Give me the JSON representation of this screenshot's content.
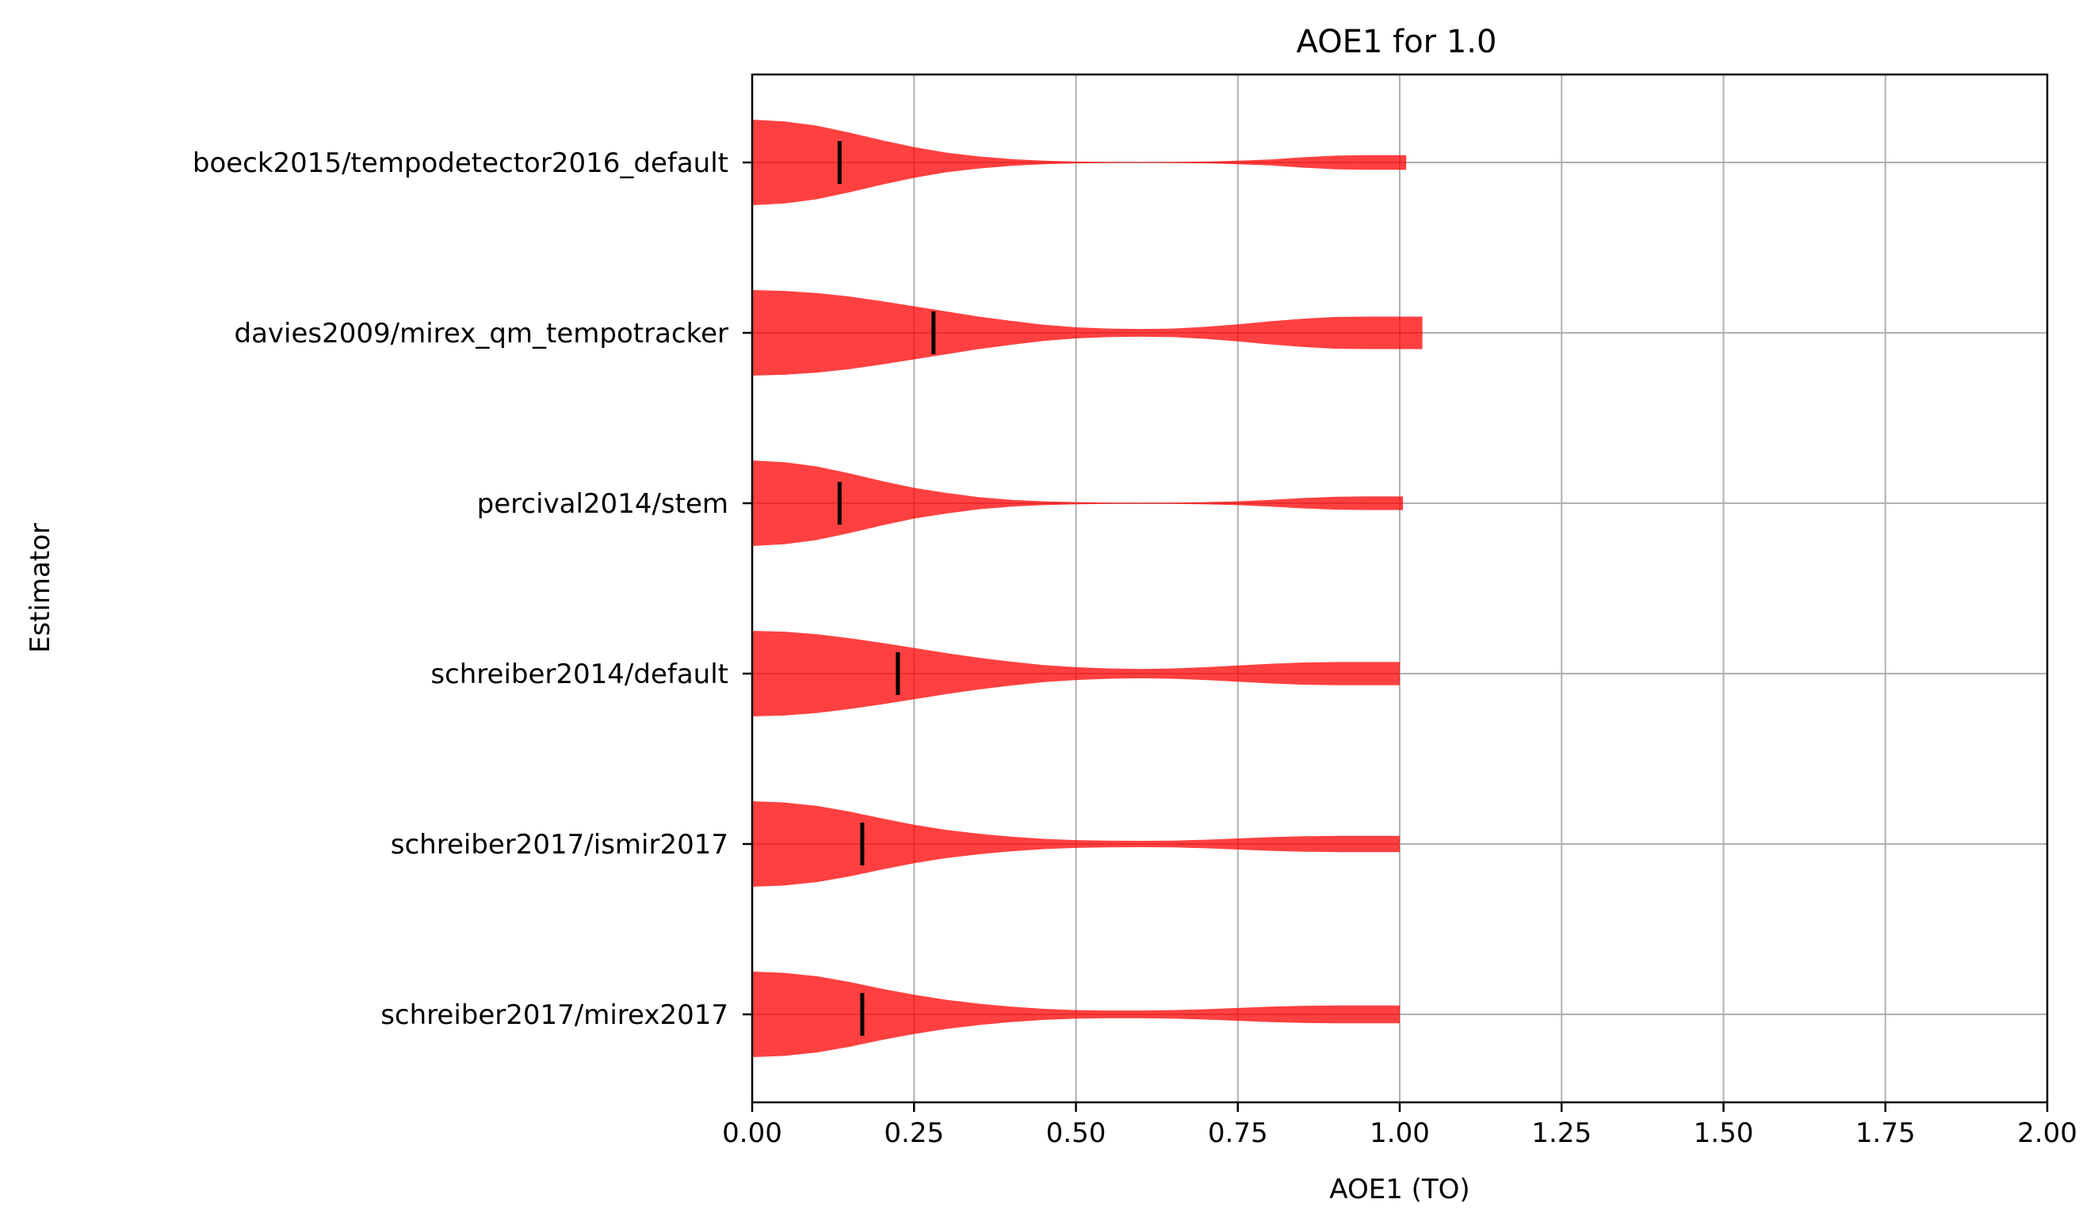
{
  "chart_data": {
    "type": "violin",
    "title": "AOE1 for 1.0",
    "xlabel": "AOE1 (TO)",
    "ylabel": "Estimator",
    "xlim": [
      0,
      2
    ],
    "xticks": [
      "0.00",
      "0.25",
      "0.50",
      "0.75",
      "1.00",
      "1.25",
      "1.50",
      "1.75",
      "2.00"
    ],
    "grid": true,
    "color": "#ff0000",
    "median_color": "#000000",
    "series": [
      {
        "name": "boeck2015/tempodetector2016_default",
        "median": 0.135,
        "max": 1.01,
        "profile_x": [
          0,
          0.05,
          0.1,
          0.15,
          0.2,
          0.25,
          0.3,
          0.35,
          0.4,
          0.45,
          0.5,
          0.55,
          0.6,
          0.65,
          0.7,
          0.75,
          0.8,
          0.85,
          0.9,
          0.95,
          1.0,
          1.01
        ],
        "profile_w": [
          1.0,
          0.96,
          0.86,
          0.7,
          0.52,
          0.36,
          0.23,
          0.14,
          0.08,
          0.04,
          0.02,
          0.012,
          0.01,
          0.012,
          0.02,
          0.04,
          0.07,
          0.12,
          0.16,
          0.17,
          0.17,
          0.17
        ]
      },
      {
        "name": "davies2009/mirex_qm_tempotracker",
        "median": 0.28,
        "max": 1.035,
        "profile_x": [
          0,
          0.05,
          0.1,
          0.15,
          0.2,
          0.25,
          0.3,
          0.35,
          0.4,
          0.45,
          0.5,
          0.55,
          0.6,
          0.65,
          0.7,
          0.75,
          0.8,
          0.85,
          0.9,
          0.95,
          1.0,
          1.035
        ],
        "profile_w": [
          1.0,
          0.98,
          0.93,
          0.85,
          0.74,
          0.62,
          0.5,
          0.38,
          0.28,
          0.19,
          0.13,
          0.1,
          0.09,
          0.1,
          0.14,
          0.2,
          0.27,
          0.33,
          0.37,
          0.38,
          0.38,
          0.38
        ]
      },
      {
        "name": "percival2014/stem",
        "median": 0.135,
        "max": 1.005,
        "profile_x": [
          0,
          0.05,
          0.1,
          0.15,
          0.2,
          0.25,
          0.3,
          0.35,
          0.4,
          0.45,
          0.5,
          0.55,
          0.6,
          0.65,
          0.7,
          0.75,
          0.8,
          0.85,
          0.9,
          0.95,
          1.0,
          1.005
        ],
        "profile_w": [
          1.0,
          0.96,
          0.86,
          0.7,
          0.52,
          0.36,
          0.24,
          0.14,
          0.08,
          0.045,
          0.025,
          0.015,
          0.012,
          0.014,
          0.025,
          0.045,
          0.08,
          0.12,
          0.15,
          0.16,
          0.16,
          0.16
        ]
      },
      {
        "name": "schreiber2014/default",
        "median": 0.225,
        "max": 1.0,
        "profile_x": [
          0,
          0.05,
          0.1,
          0.15,
          0.2,
          0.25,
          0.3,
          0.35,
          0.4,
          0.45,
          0.5,
          0.55,
          0.6,
          0.65,
          0.7,
          0.75,
          0.8,
          0.85,
          0.9,
          0.95,
          1.0
        ],
        "profile_w": [
          1.0,
          0.98,
          0.92,
          0.83,
          0.72,
          0.6,
          0.48,
          0.37,
          0.28,
          0.2,
          0.15,
          0.12,
          0.11,
          0.12,
          0.15,
          0.19,
          0.23,
          0.26,
          0.27,
          0.27,
          0.27
        ]
      },
      {
        "name": "schreiber2017/ismir2017",
        "median": 0.17,
        "max": 1.0,
        "profile_x": [
          0,
          0.05,
          0.1,
          0.15,
          0.2,
          0.25,
          0.3,
          0.35,
          0.4,
          0.45,
          0.5,
          0.55,
          0.6,
          0.65,
          0.7,
          0.75,
          0.8,
          0.85,
          0.9,
          0.95,
          1.0
        ],
        "profile_w": [
          1.0,
          0.97,
          0.89,
          0.76,
          0.6,
          0.45,
          0.33,
          0.24,
          0.17,
          0.12,
          0.09,
          0.08,
          0.075,
          0.08,
          0.1,
          0.13,
          0.16,
          0.18,
          0.19,
          0.19,
          0.19
        ]
      },
      {
        "name": "schreiber2017/mirex2017",
        "median": 0.17,
        "max": 1.0,
        "profile_x": [
          0,
          0.05,
          0.1,
          0.15,
          0.2,
          0.25,
          0.3,
          0.35,
          0.4,
          0.45,
          0.5,
          0.55,
          0.6,
          0.65,
          0.7,
          0.75,
          0.8,
          0.85,
          0.9,
          0.95,
          1.0
        ],
        "profile_w": [
          1.0,
          0.97,
          0.89,
          0.76,
          0.6,
          0.46,
          0.34,
          0.25,
          0.18,
          0.13,
          0.1,
          0.09,
          0.09,
          0.1,
          0.12,
          0.15,
          0.18,
          0.2,
          0.21,
          0.21,
          0.21
        ]
      }
    ]
  }
}
